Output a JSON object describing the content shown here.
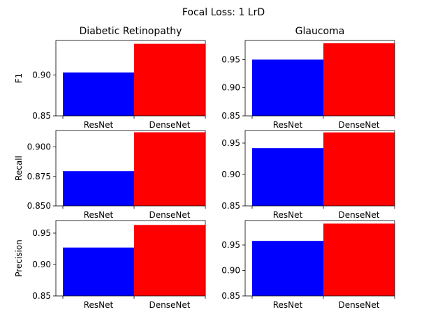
{
  "figure": {
    "suptitle": "Focal Loss: 1 LrD"
  },
  "colors": {
    "ResNet": "#0000ff",
    "DenseNet": "#ff0000"
  },
  "chart_data": [
    {
      "type": "bar",
      "title": "Diabetic Retinopathy",
      "ylabel": "F1",
      "categories": [
        "ResNet",
        "DenseNet"
      ],
      "values": [
        0.903,
        0.938
      ],
      "ylim": [
        0.85,
        0.942
      ],
      "yticks": [
        "0.85",
        "0.90"
      ]
    },
    {
      "type": "bar",
      "title": "Glaucoma",
      "ylabel": "",
      "categories": [
        "ResNet",
        "DenseNet"
      ],
      "values": [
        0.95,
        0.979
      ],
      "ylim": [
        0.85,
        0.984
      ],
      "yticks": [
        "0.85",
        "0.90",
        "0.95"
      ]
    },
    {
      "type": "bar",
      "title": "",
      "ylabel": "Recall",
      "categories": [
        "ResNet",
        "DenseNet"
      ],
      "values": [
        0.8795,
        0.9125
      ],
      "ylim": [
        0.85,
        0.914
      ],
      "yticks": [
        "0.850",
        "0.875",
        "0.900"
      ]
    },
    {
      "type": "bar",
      "title": "",
      "ylabel": "",
      "categories": [
        "ResNet",
        "DenseNet"
      ],
      "values": [
        0.942,
        0.967
      ],
      "ylim": [
        0.85,
        0.97
      ],
      "yticks": [
        "0.85",
        "0.90",
        "0.95"
      ]
    },
    {
      "type": "bar",
      "title": "",
      "ylabel": "Precision",
      "categories": [
        "ResNet",
        "DenseNet"
      ],
      "values": [
        0.927,
        0.963
      ],
      "ylim": [
        0.85,
        0.97
      ],
      "yticks": [
        "0.85",
        "0.90",
        "0.95"
      ]
    },
    {
      "type": "bar",
      "title": "",
      "ylabel": "",
      "categories": [
        "ResNet",
        "DenseNet"
      ],
      "values": [
        0.958,
        0.992
      ],
      "ylim": [
        0.85,
        0.998
      ],
      "yticks": [
        "0.85",
        "0.90",
        "0.95"
      ]
    }
  ]
}
